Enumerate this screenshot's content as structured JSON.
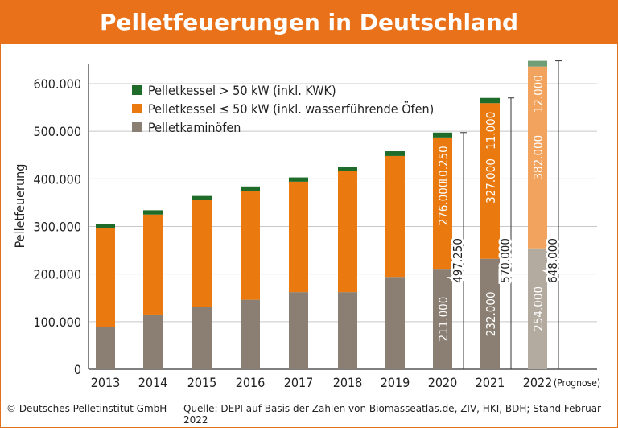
{
  "title": "Pelletfeuerungen in Deutschland",
  "footer": {
    "copyright": "© Deutsches Pelletinstitut GmbH",
    "source": "Quelle: DEPI auf Basis der Zahlen von Biomasseatlas.de, ZIV, HKI, BDH; Stand Februar 2022"
  },
  "colors": {
    "title_bg": "#e8711a",
    "kaminoefen": "#8a7f72",
    "kessel_small": "#ea7a0f",
    "kessel_large": "#1e6b2a",
    "prognose_kaminoefen": "#b3aba0",
    "prognose_kessel_small": "#f2a45e",
    "prognose_kessel_large": "#6f9e76"
  },
  "chart_data": {
    "type": "bar",
    "stacked": true,
    "ylabel": "Pelletfeuerung",
    "ylim": [
      0,
      650000
    ],
    "yticks": [
      "0",
      "100.000",
      "200.000",
      "300.000",
      "400.000",
      "500.000",
      "600.000"
    ],
    "ytick_values": [
      0,
      100000,
      200000,
      300000,
      400000,
      500000,
      600000
    ],
    "categories": [
      "2013",
      "2014",
      "2015",
      "2016",
      "2017",
      "2018",
      "2019",
      "2020",
      "2021",
      "2022"
    ],
    "prognose_label": "(Prognose)",
    "legend": [
      "Pelletkessel > 50 kW (inkl. KWK)",
      "Pelletkessel ≤ 50 kW (inkl. wasserführende Öfen)",
      "Pelletkaminöfen"
    ],
    "series": [
      {
        "name": "Pelletkaminöfen",
        "values": [
          88000,
          115000,
          131000,
          146000,
          162000,
          162000,
          194000,
          211000,
          232000,
          254000
        ]
      },
      {
        "name": "Pelletkessel ≤ 50 kW (inkl. wasserführende Öfen)",
        "values": [
          208000,
          210000,
          224000,
          229000,
          232000,
          254000,
          254000,
          276000,
          327000,
          382000
        ]
      },
      {
        "name": "Pelletkessel > 50 kW (inkl. KWK)",
        "values": [
          9000,
          9000,
          9000,
          9000,
          9000,
          9000,
          10000,
          10250,
          11000,
          12000
        ]
      }
    ],
    "value_labels": [
      {
        "year": "2020",
        "kaminoefen": "211.000",
        "kessel_small": "276.000",
        "kessel_large": "10.250",
        "total": "497.250"
      },
      {
        "year": "2021",
        "kaminoefen": "232.000",
        "kessel_small": "327.000",
        "kessel_large": "11.000",
        "total": "570.000"
      },
      {
        "year": "2022",
        "kaminoefen": "254.000",
        "kessel_small": "382.000",
        "kessel_large": "12.000",
        "total": "648.000"
      }
    ],
    "grid": "horizontal",
    "legend_position": "top-left"
  }
}
